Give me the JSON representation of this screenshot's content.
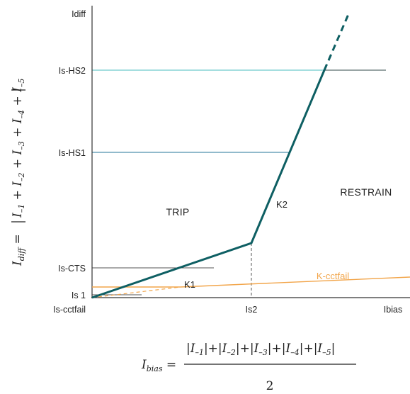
{
  "chart_data": {
    "type": "line",
    "title": "",
    "xlabel": "Ibias",
    "ylabel": "Idiff",
    "y_tick_labels": [
      "Idiff",
      "Is-HS2",
      "Is-HS1",
      "Is-CTS",
      "Is 1",
      "Is-cctfail"
    ],
    "x_tick_labels": [
      "Is2",
      "Ibias"
    ],
    "regions": [
      "TRIP",
      "RESTRAIN"
    ],
    "segment_labels": [
      "K1",
      "K2",
      "K-cctfail"
    ],
    "y_formula": {
      "lhs": "I",
      "lhs_sub": "diff",
      "terms": [
        "I",
        "I",
        "I",
        "I",
        "I"
      ],
      "subs": [
        "–1",
        "–2",
        "–3",
        "–4",
        "–5"
      ]
    },
    "x_formula": {
      "lhs": "I",
      "lhs_sub": "bias",
      "terms": [
        "I",
        "I",
        "I",
        "I",
        "I"
      ],
      "subs": [
        "–1",
        "–2",
        "–3",
        "–4",
        "–5"
      ],
      "denominator": "2"
    },
    "colors": {
      "main_curve": "#0e5f63",
      "cctfail": "#f2a54a",
      "hs2_line": "#6ec9cc",
      "hs1_line": "#4f90ad",
      "threshold_line": "#555555",
      "axis": "#333333"
    }
  }
}
